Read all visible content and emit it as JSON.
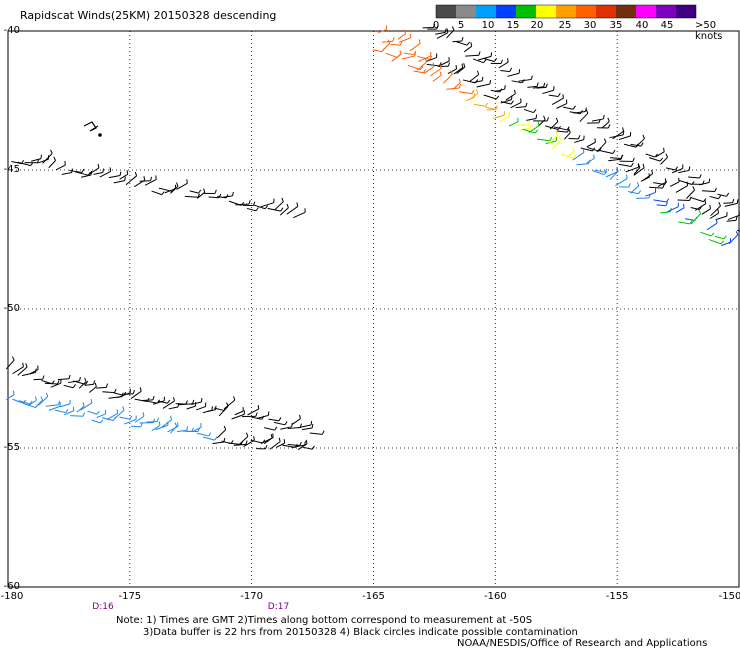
{
  "header": {
    "title": "Rapidscat Winds(25KM) 20150328 descending"
  },
  "legend": {
    "colors": [
      "#4a4a4a",
      "#8a8a8a",
      "#00a0ff",
      "#0040ff",
      "#00c000",
      "#ffff00",
      "#ffa000",
      "#ff6000",
      "#e03000",
      "#703010",
      "#ff00ff",
      "#8000c0",
      "#400080"
    ],
    "labels": [
      "0",
      "5",
      "10",
      "15",
      "20",
      "25",
      "30",
      "35",
      "40",
      "45",
      ">50 knots"
    ]
  },
  "map": {
    "lon_ticks": [
      "-180",
      "-175",
      "-170",
      "-165",
      "-160",
      "-155",
      "-150"
    ],
    "lat_ticks": [
      "-40",
      "-45",
      "-50",
      "-55",
      "-60"
    ],
    "time_labels": [
      {
        "label": "D:16",
        "lon": -176.1
      },
      {
        "label": "D:17",
        "lon": -168.9
      }
    ]
  },
  "footer": {
    "note_line1": "Note: 1) Times are GMT 2)Times along bottom correspond to measurement at -50S",
    "note_line2": "3)Data buffer is 22 hrs from 20150328 4) Black circles indicate possible contamination",
    "credit": "NOAA/NESDIS/Office of Research and Applications"
  }
}
